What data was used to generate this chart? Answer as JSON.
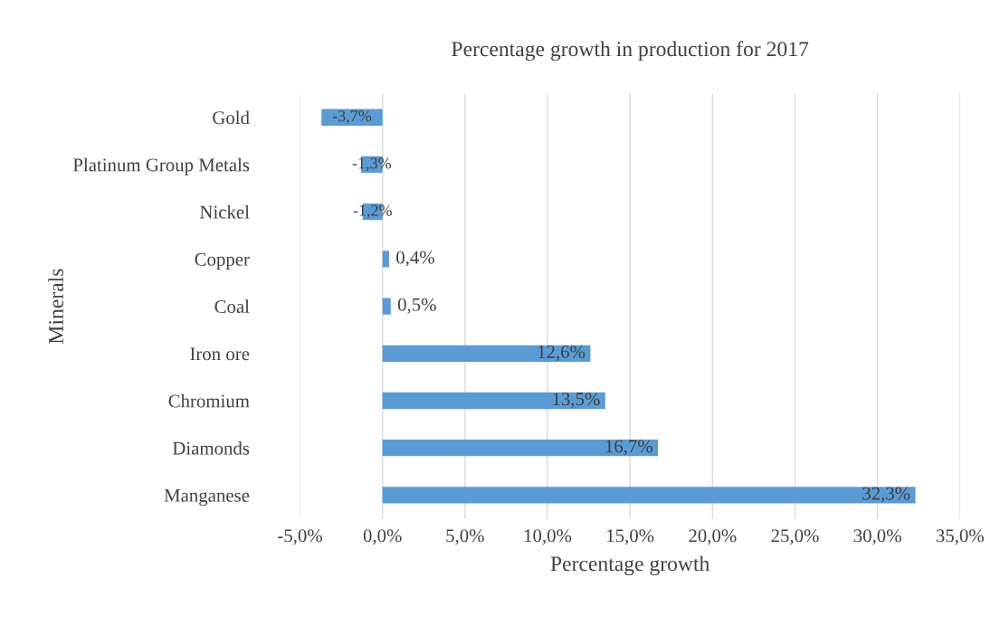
{
  "chart_data": {
    "type": "bar",
    "orientation": "horizontal",
    "title": "Percentage growth in production for 2017",
    "xlabel": "Percentage growth",
    "ylabel": "Minerals",
    "categories": [
      "Gold",
      "Platinum Group Metals",
      "Nickel",
      "Copper",
      "Coal",
      "Iron ore",
      "Chromium",
      "Diamonds",
      "Manganese"
    ],
    "values": [
      -3.7,
      -1.3,
      -1.2,
      0.4,
      0.5,
      12.6,
      13.5,
      16.7,
      32.3
    ],
    "value_labels": [
      "-3,7%",
      "-1,3%",
      "-1,2%",
      "0,4%",
      "0,5%",
      "12,6%",
      "13,5%",
      "16,7%",
      "32,3%"
    ],
    "color": "#5b9bd5",
    "xlim": [
      -5,
      35
    ],
    "xticks": [
      {
        "value": -5,
        "label": "-5,0%"
      },
      {
        "value": 0,
        "label": "0,0%"
      },
      {
        "value": 5,
        "label": "5,0%"
      },
      {
        "value": 10,
        "label": "10,0%"
      },
      {
        "value": 15,
        "label": "15,0%"
      },
      {
        "value": 20,
        "label": "20,0%"
      },
      {
        "value": 25,
        "label": "25,0%"
      },
      {
        "value": 30,
        "label": "30,0%"
      },
      {
        "value": 35,
        "label": "35,0%"
      }
    ],
    "grid": "x"
  }
}
